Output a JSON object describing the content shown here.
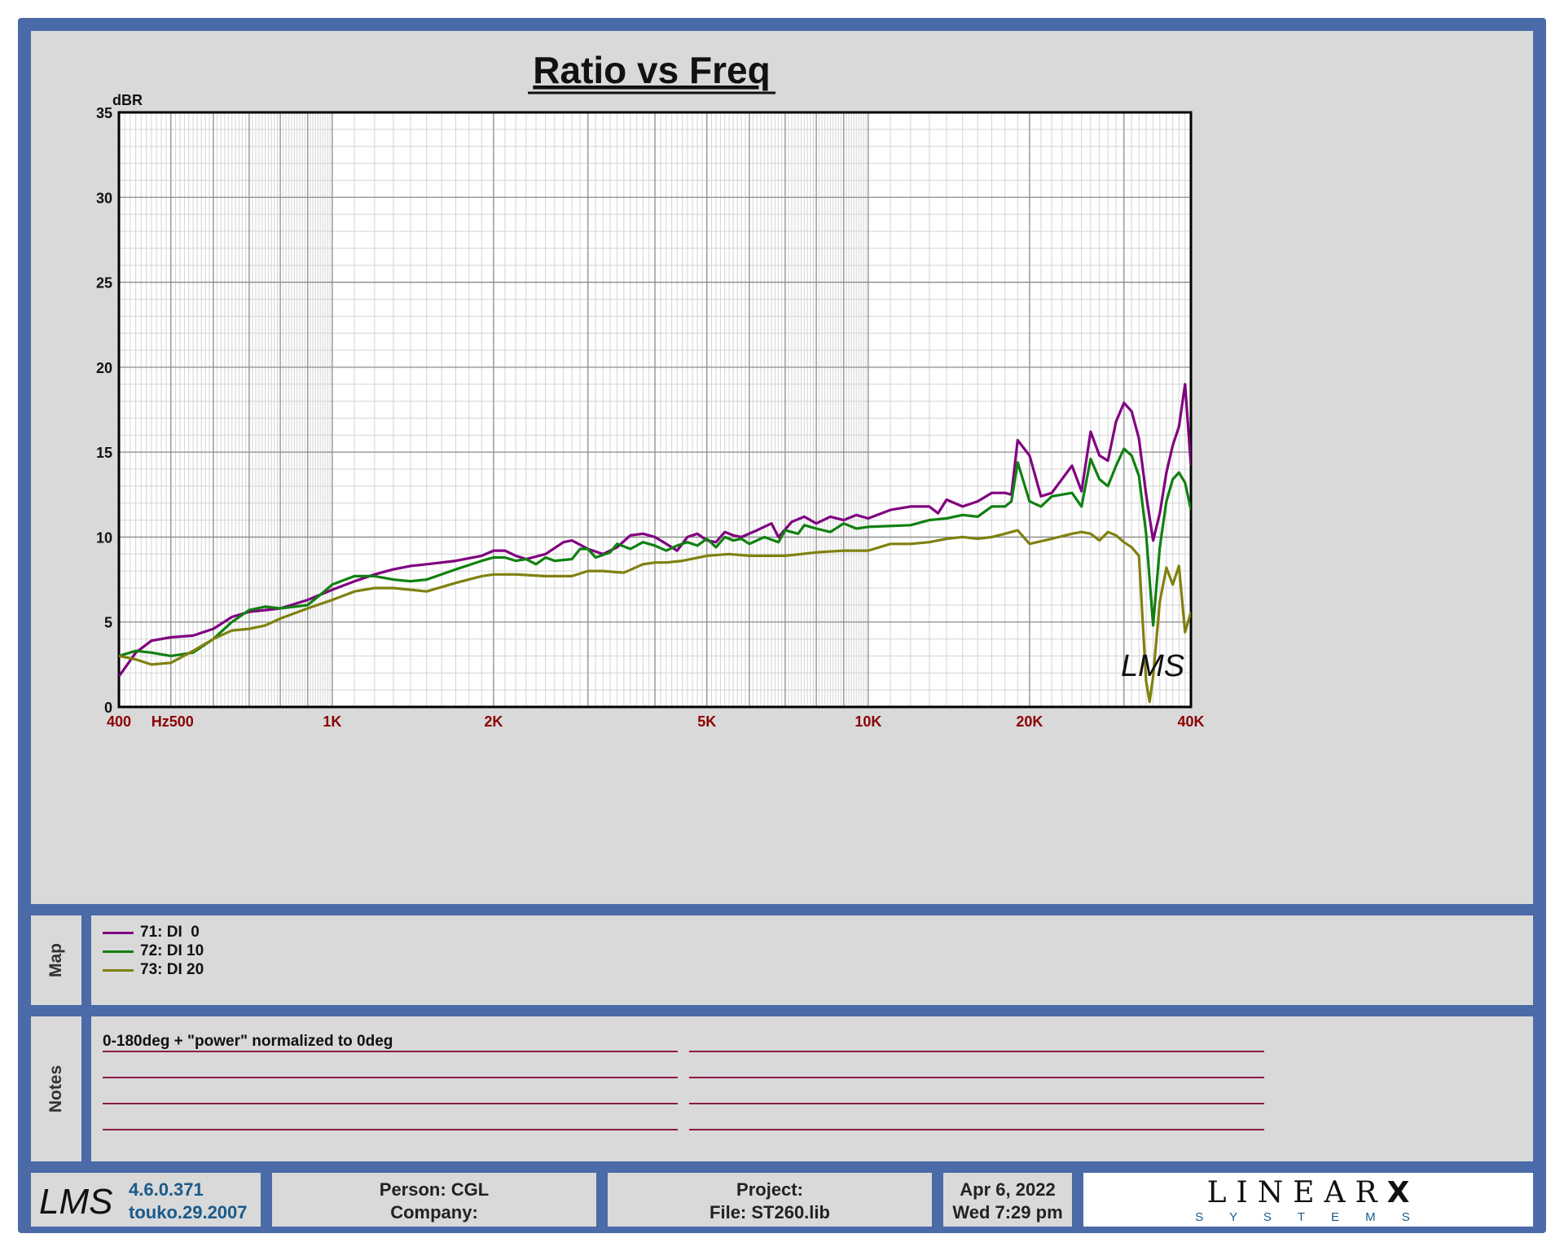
{
  "chart_data": {
    "type": "line",
    "title": "Ratio vs Freq",
    "ylabel": "dBR",
    "xscale": "log",
    "xlim": [
      400,
      40000
    ],
    "ylim": [
      0,
      35
    ],
    "grid": true,
    "y_ticks": [
      0,
      5,
      10,
      15,
      20,
      25,
      30,
      35
    ],
    "x_ticks": [
      {
        "value": 400,
        "label": "400"
      },
      {
        "value": 450,
        "label": "Hz"
      },
      {
        "value": 500,
        "label": "500"
      },
      {
        "value": 1000,
        "label": "1K"
      },
      {
        "value": 2000,
        "label": "2K"
      },
      {
        "value": 5000,
        "label": "5K"
      },
      {
        "value": 10000,
        "label": "10K"
      },
      {
        "value": 20000,
        "label": "20K"
      },
      {
        "value": 40000,
        "label": "40K"
      }
    ],
    "series": [
      {
        "name": "71: DI  0",
        "color": "#800080",
        "points": [
          [
            400,
            1.8
          ],
          [
            430,
            3.2
          ],
          [
            460,
            3.9
          ],
          [
            500,
            4.1
          ],
          [
            550,
            4.2
          ],
          [
            600,
            4.6
          ],
          [
            650,
            5.3
          ],
          [
            700,
            5.6
          ],
          [
            750,
            5.7
          ],
          [
            800,
            5.8
          ],
          [
            900,
            6.3
          ],
          [
            1000,
            6.9
          ],
          [
            1100,
            7.4
          ],
          [
            1200,
            7.8
          ],
          [
            1300,
            8.1
          ],
          [
            1400,
            8.3
          ],
          [
            1500,
            8.4
          ],
          [
            1700,
            8.6
          ],
          [
            1900,
            8.9
          ],
          [
            2000,
            9.2
          ],
          [
            2100,
            9.2
          ],
          [
            2200,
            8.9
          ],
          [
            2300,
            8.7
          ],
          [
            2500,
            9.0
          ],
          [
            2700,
            9.7
          ],
          [
            2800,
            9.8
          ],
          [
            3000,
            9.3
          ],
          [
            3200,
            9.0
          ],
          [
            3400,
            9.4
          ],
          [
            3600,
            10.1
          ],
          [
            3800,
            10.2
          ],
          [
            4000,
            10.0
          ],
          [
            4200,
            9.6
          ],
          [
            4400,
            9.2
          ],
          [
            4600,
            10.0
          ],
          [
            4800,
            10.2
          ],
          [
            5000,
            9.8
          ],
          [
            5200,
            9.7
          ],
          [
            5400,
            10.3
          ],
          [
            5600,
            10.1
          ],
          [
            5800,
            10.0
          ],
          [
            6200,
            10.4
          ],
          [
            6600,
            10.8
          ],
          [
            6800,
            10.0
          ],
          [
            7200,
            10.9
          ],
          [
            7600,
            11.2
          ],
          [
            8000,
            10.8
          ],
          [
            8500,
            11.2
          ],
          [
            9000,
            11.0
          ],
          [
            9500,
            11.3
          ],
          [
            10000,
            11.1
          ],
          [
            11000,
            11.6
          ],
          [
            12000,
            11.8
          ],
          [
            13000,
            11.8
          ],
          [
            13500,
            11.4
          ],
          [
            14000,
            12.2
          ],
          [
            15000,
            11.8
          ],
          [
            16000,
            12.1
          ],
          [
            17000,
            12.6
          ],
          [
            18000,
            12.6
          ],
          [
            18500,
            12.5
          ],
          [
            19000,
            15.7
          ],
          [
            20000,
            14.8
          ],
          [
            21000,
            12.4
          ],
          [
            22000,
            12.6
          ],
          [
            24000,
            14.2
          ],
          [
            25000,
            12.7
          ],
          [
            26000,
            16.2
          ],
          [
            27000,
            14.8
          ],
          [
            28000,
            14.5
          ],
          [
            29000,
            16.8
          ],
          [
            30000,
            17.9
          ],
          [
            31000,
            17.4
          ],
          [
            32000,
            15.8
          ],
          [
            33000,
            12.5
          ],
          [
            34000,
            9.8
          ],
          [
            35000,
            11.4
          ],
          [
            36000,
            13.8
          ],
          [
            37000,
            15.4
          ],
          [
            38000,
            16.5
          ],
          [
            39000,
            19.0
          ],
          [
            40000,
            14.2
          ]
        ]
      },
      {
        "name": "72: DI 10",
        "color": "#108010",
        "points": [
          [
            400,
            3.0
          ],
          [
            430,
            3.3
          ],
          [
            460,
            3.2
          ],
          [
            500,
            3.0
          ],
          [
            550,
            3.2
          ],
          [
            600,
            4.0
          ],
          [
            650,
            5.0
          ],
          [
            700,
            5.7
          ],
          [
            750,
            5.9
          ],
          [
            800,
            5.8
          ],
          [
            900,
            6.0
          ],
          [
            950,
            6.6
          ],
          [
            1000,
            7.2
          ],
          [
            1100,
            7.7
          ],
          [
            1200,
            7.7
          ],
          [
            1300,
            7.5
          ],
          [
            1400,
            7.4
          ],
          [
            1500,
            7.5
          ],
          [
            1700,
            8.1
          ],
          [
            1900,
            8.6
          ],
          [
            2000,
            8.8
          ],
          [
            2100,
            8.8
          ],
          [
            2200,
            8.6
          ],
          [
            2300,
            8.7
          ],
          [
            2400,
            8.4
          ],
          [
            2500,
            8.8
          ],
          [
            2600,
            8.6
          ],
          [
            2800,
            8.7
          ],
          [
            2900,
            9.3
          ],
          [
            3000,
            9.3
          ],
          [
            3100,
            8.8
          ],
          [
            3300,
            9.1
          ],
          [
            3400,
            9.6
          ],
          [
            3600,
            9.3
          ],
          [
            3800,
            9.7
          ],
          [
            4000,
            9.5
          ],
          [
            4200,
            9.2
          ],
          [
            4400,
            9.5
          ],
          [
            4600,
            9.7
          ],
          [
            4800,
            9.5
          ],
          [
            5000,
            9.9
          ],
          [
            5200,
            9.4
          ],
          [
            5400,
            10.0
          ],
          [
            5600,
            9.8
          ],
          [
            5800,
            9.9
          ],
          [
            6000,
            9.6
          ],
          [
            6400,
            10.0
          ],
          [
            6800,
            9.7
          ],
          [
            7000,
            10.4
          ],
          [
            7400,
            10.2
          ],
          [
            7600,
            10.7
          ],
          [
            8000,
            10.5
          ],
          [
            8500,
            10.3
          ],
          [
            9000,
            10.8
          ],
          [
            9500,
            10.5
          ],
          [
            10000,
            10.6
          ],
          [
            12000,
            10.7
          ],
          [
            13000,
            11.0
          ],
          [
            14000,
            11.1
          ],
          [
            15000,
            11.3
          ],
          [
            16000,
            11.2
          ],
          [
            17000,
            11.8
          ],
          [
            18000,
            11.8
          ],
          [
            18500,
            12.1
          ],
          [
            19000,
            14.4
          ],
          [
            20000,
            12.1
          ],
          [
            21000,
            11.8
          ],
          [
            22000,
            12.4
          ],
          [
            24000,
            12.6
          ],
          [
            25000,
            11.8
          ],
          [
            26000,
            14.6
          ],
          [
            27000,
            13.4
          ],
          [
            28000,
            13.0
          ],
          [
            29000,
            14.2
          ],
          [
            30000,
            15.2
          ],
          [
            31000,
            14.8
          ],
          [
            32000,
            13.6
          ],
          [
            33000,
            10.2
          ],
          [
            34000,
            4.8
          ],
          [
            35000,
            9.4
          ],
          [
            36000,
            12.1
          ],
          [
            37000,
            13.4
          ],
          [
            38000,
            13.8
          ],
          [
            39000,
            13.2
          ],
          [
            40000,
            11.6
          ]
        ]
      },
      {
        "name": "73: DI 20",
        "color": "#808010",
        "points": [
          [
            400,
            3.0
          ],
          [
            430,
            2.8
          ],
          [
            460,
            2.5
          ],
          [
            500,
            2.6
          ],
          [
            550,
            3.3
          ],
          [
            600,
            4.0
          ],
          [
            650,
            4.5
          ],
          [
            700,
            4.6
          ],
          [
            750,
            4.8
          ],
          [
            800,
            5.2
          ],
          [
            900,
            5.8
          ],
          [
            1000,
            6.3
          ],
          [
            1100,
            6.8
          ],
          [
            1200,
            7.0
          ],
          [
            1300,
            7.0
          ],
          [
            1400,
            6.9
          ],
          [
            1500,
            6.8
          ],
          [
            1700,
            7.3
          ],
          [
            1900,
            7.7
          ],
          [
            2000,
            7.8
          ],
          [
            2200,
            7.8
          ],
          [
            2500,
            7.7
          ],
          [
            2800,
            7.7
          ],
          [
            3000,
            8.0
          ],
          [
            3200,
            8.0
          ],
          [
            3500,
            7.9
          ],
          [
            3800,
            8.4
          ],
          [
            4000,
            8.5
          ],
          [
            4200,
            8.5
          ],
          [
            4500,
            8.6
          ],
          [
            5000,
            8.9
          ],
          [
            5500,
            9.0
          ],
          [
            6000,
            8.9
          ],
          [
            7000,
            8.9
          ],
          [
            7500,
            9.0
          ],
          [
            8000,
            9.1
          ],
          [
            9000,
            9.2
          ],
          [
            10000,
            9.2
          ],
          [
            11000,
            9.6
          ],
          [
            12000,
            9.6
          ],
          [
            13000,
            9.7
          ],
          [
            14000,
            9.9
          ],
          [
            15000,
            10.0
          ],
          [
            16000,
            9.9
          ],
          [
            17000,
            10.0
          ],
          [
            18000,
            10.2
          ],
          [
            19000,
            10.4
          ],
          [
            20000,
            9.6
          ],
          [
            22000,
            9.9
          ],
          [
            24000,
            10.2
          ],
          [
            25000,
            10.3
          ],
          [
            26000,
            10.2
          ],
          [
            27000,
            9.8
          ],
          [
            28000,
            10.3
          ],
          [
            29000,
            10.1
          ],
          [
            30000,
            9.7
          ],
          [
            31000,
            9.4
          ],
          [
            32000,
            8.9
          ],
          [
            33000,
            1.5
          ],
          [
            33500,
            0.3
          ],
          [
            34000,
            1.8
          ],
          [
            35000,
            6.2
          ],
          [
            36000,
            8.2
          ],
          [
            37000,
            7.2
          ],
          [
            38000,
            8.3
          ],
          [
            39000,
            4.4
          ],
          [
            40000,
            5.6
          ]
        ]
      }
    ]
  },
  "notes": {
    "label": "Notes",
    "text": "0-180deg + \"power\" normalized to 0deg"
  },
  "map": {
    "label": "Map"
  },
  "chart_watermark": "LMS",
  "footer": {
    "logo_text": "LMS",
    "version": "4.6.0.371",
    "build": "touko.29.2007",
    "person": "Person: CGL",
    "company": "Company:",
    "project": "Project:",
    "file": "File: ST260.lib",
    "date": "Apr  6, 2022",
    "time": "Wed  7:29 pm",
    "brand_top": "LINEAR",
    "brand_x": "X",
    "brand_bottom": "S Y S T E M S"
  }
}
